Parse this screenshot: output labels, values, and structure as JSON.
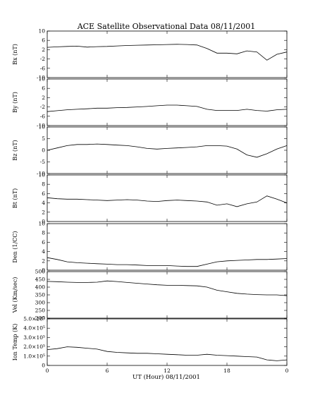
{
  "figure": {
    "title": "ACE Satellite Observational Data   08/11/2001",
    "xlabel": "UT (Hour)   08/11/2001",
    "x_ticklabels": [
      "0",
      "6",
      "12",
      "18",
      "0"
    ],
    "line_color": "#000000"
  },
  "chart_data": [
    {
      "type": "line",
      "ylabel": "Bx (nT)",
      "ylim": [
        -10,
        10
      ],
      "yticks": [
        "10",
        "6",
        "2",
        "-2",
        "-6",
        "-10"
      ],
      "ytick_values": [
        10,
        6,
        2,
        -2,
        -6,
        -10
      ],
      "series": [
        {
          "x": [
            0,
            1,
            2,
            3,
            4,
            5,
            6,
            7,
            8,
            9,
            10,
            11,
            12,
            13,
            14,
            15,
            16,
            17,
            18,
            19,
            20,
            21,
            22,
            23,
            24
          ],
          "y": [
            3,
            3.2,
            3.4,
            3.5,
            3.1,
            3.3,
            3.4,
            3.6,
            3.8,
            3.9,
            4,
            4.1,
            4.2,
            4.3,
            4.2,
            4,
            2.5,
            0.5,
            0.5,
            0.2,
            1.5,
            1,
            -2.5,
            0,
            1
          ]
        }
      ]
    },
    {
      "type": "line",
      "ylabel": "By (nT)",
      "ylim": [
        -10,
        10
      ],
      "yticks": [
        "10",
        "6",
        "2",
        "-2",
        "-6",
        "-10"
      ],
      "ytick_values": [
        10,
        6,
        2,
        -2,
        -6,
        -10
      ],
      "series": [
        {
          "x": [
            0,
            1,
            2,
            3,
            4,
            5,
            6,
            7,
            8,
            9,
            10,
            11,
            12,
            13,
            14,
            15,
            16,
            17,
            18,
            19,
            20,
            21,
            22,
            23,
            24
          ],
          "y": [
            -4,
            -3.6,
            -3.2,
            -3,
            -2.8,
            -2.5,
            -2.5,
            -2.3,
            -2.2,
            -2,
            -1.8,
            -1.5,
            -1.2,
            -1.2,
            -1.5,
            -1.8,
            -3,
            -3.5,
            -3.5,
            -3.5,
            -3,
            -3.5,
            -3.8,
            -3.2,
            -3
          ]
        }
      ]
    },
    {
      "type": "line",
      "ylabel": "Bz (nT)",
      "ylim": [
        -10,
        10
      ],
      "yticks": [
        "10",
        "5",
        "0",
        "-5",
        "-10"
      ],
      "ytick_values": [
        10,
        5,
        0,
        -5,
        -10
      ],
      "series": [
        {
          "x": [
            0,
            1,
            2,
            3,
            4,
            5,
            6,
            7,
            8,
            9,
            10,
            11,
            12,
            13,
            14,
            15,
            16,
            17,
            18,
            19,
            20,
            21,
            22,
            23,
            24
          ],
          "y": [
            0,
            1,
            2,
            2.5,
            2.5,
            2.7,
            2.5,
            2.2,
            2,
            1.5,
            0.8,
            0.5,
            0.8,
            1,
            1.2,
            1.5,
            2,
            2,
            1.8,
            0.5,
            -2,
            -3,
            -1.5,
            0.5,
            2
          ]
        }
      ]
    },
    {
      "type": "line",
      "ylabel": "Bt (nT)",
      "ylim": [
        0,
        10
      ],
      "yticks": [
        "10",
        "8",
        "6",
        "4",
        "2",
        "0"
      ],
      "ytick_values": [
        10,
        8,
        6,
        4,
        2,
        0
      ],
      "series": [
        {
          "x": [
            0,
            1,
            2,
            3,
            4,
            5,
            6,
            7,
            8,
            9,
            10,
            11,
            12,
            13,
            14,
            15,
            16,
            17,
            18,
            19,
            20,
            21,
            22,
            23,
            24
          ],
          "y": [
            5.1,
            4.9,
            4.8,
            4.8,
            4.7,
            4.6,
            4.5,
            4.6,
            4.7,
            4.6,
            4.4,
            4.3,
            4.5,
            4.6,
            4.5,
            4.4,
            4.2,
            3.5,
            3.8,
            3.2,
            3.8,
            4.2,
            5.5,
            4.8,
            4
          ]
        }
      ]
    },
    {
      "type": "line",
      "ylabel": "Den (1/CC)",
      "ylim": [
        0,
        10
      ],
      "yticks": [
        "10",
        "8",
        "6",
        "4",
        "2",
        "0"
      ],
      "ytick_values": [
        10,
        8,
        6,
        4,
        2,
        0
      ],
      "series": [
        {
          "x": [
            0,
            1,
            2,
            3,
            4,
            5,
            6,
            7,
            8,
            9,
            10,
            11,
            12,
            13,
            14,
            15,
            16,
            17,
            18,
            19,
            20,
            21,
            22,
            23,
            24
          ],
          "y": [
            2.7,
            2.3,
            1.8,
            1.6,
            1.5,
            1.4,
            1.3,
            1.2,
            1.2,
            1.1,
            1,
            1,
            1,
            0.9,
            0.8,
            0.8,
            1.3,
            1.8,
            2,
            2.1,
            2.2,
            2.3,
            2.3,
            2.4,
            2.5
          ]
        }
      ]
    },
    {
      "type": "line",
      "ylabel": "Vel (Km/sec)",
      "ylim": [
        200,
        500
      ],
      "yticks": [
        "500",
        "450",
        "400",
        "350",
        "300",
        "250",
        "200"
      ],
      "ytick_values": [
        500,
        450,
        400,
        350,
        300,
        250,
        200
      ],
      "series": [
        {
          "x": [
            0,
            1,
            2,
            3,
            4,
            5,
            6,
            7,
            8,
            9,
            10,
            11,
            12,
            13,
            14,
            15,
            16,
            17,
            18,
            19,
            20,
            21,
            22,
            23,
            24
          ],
          "y": [
            437,
            435,
            432,
            430,
            430,
            432,
            440,
            436,
            430,
            425,
            420,
            415,
            412,
            412,
            410,
            408,
            400,
            380,
            370,
            360,
            355,
            352,
            350,
            350,
            345
          ]
        }
      ]
    },
    {
      "type": "line",
      "ylabel": "Ion Temp (K)",
      "ylim": [
        0,
        500000
      ],
      "yticks": [
        "5.0×10⁵",
        "4.0×10⁵",
        "3.0×10⁵",
        "2.0×10⁵",
        "1.0×10⁵",
        "0"
      ],
      "ytick_values": [
        500000,
        400000,
        300000,
        200000,
        100000,
        0
      ],
      "series": [
        {
          "x": [
            0,
            1,
            2,
            3,
            4,
            5,
            6,
            7,
            8,
            9,
            10,
            11,
            12,
            13,
            14,
            15,
            16,
            17,
            18,
            19,
            20,
            21,
            22,
            23,
            24
          ],
          "y": [
            170000,
            180000,
            200000,
            195000,
            185000,
            175000,
            150000,
            140000,
            135000,
            130000,
            130000,
            125000,
            120000,
            115000,
            110000,
            110000,
            120000,
            110000,
            105000,
            100000,
            95000,
            90000,
            60000,
            50000,
            60000
          ]
        }
      ]
    }
  ]
}
